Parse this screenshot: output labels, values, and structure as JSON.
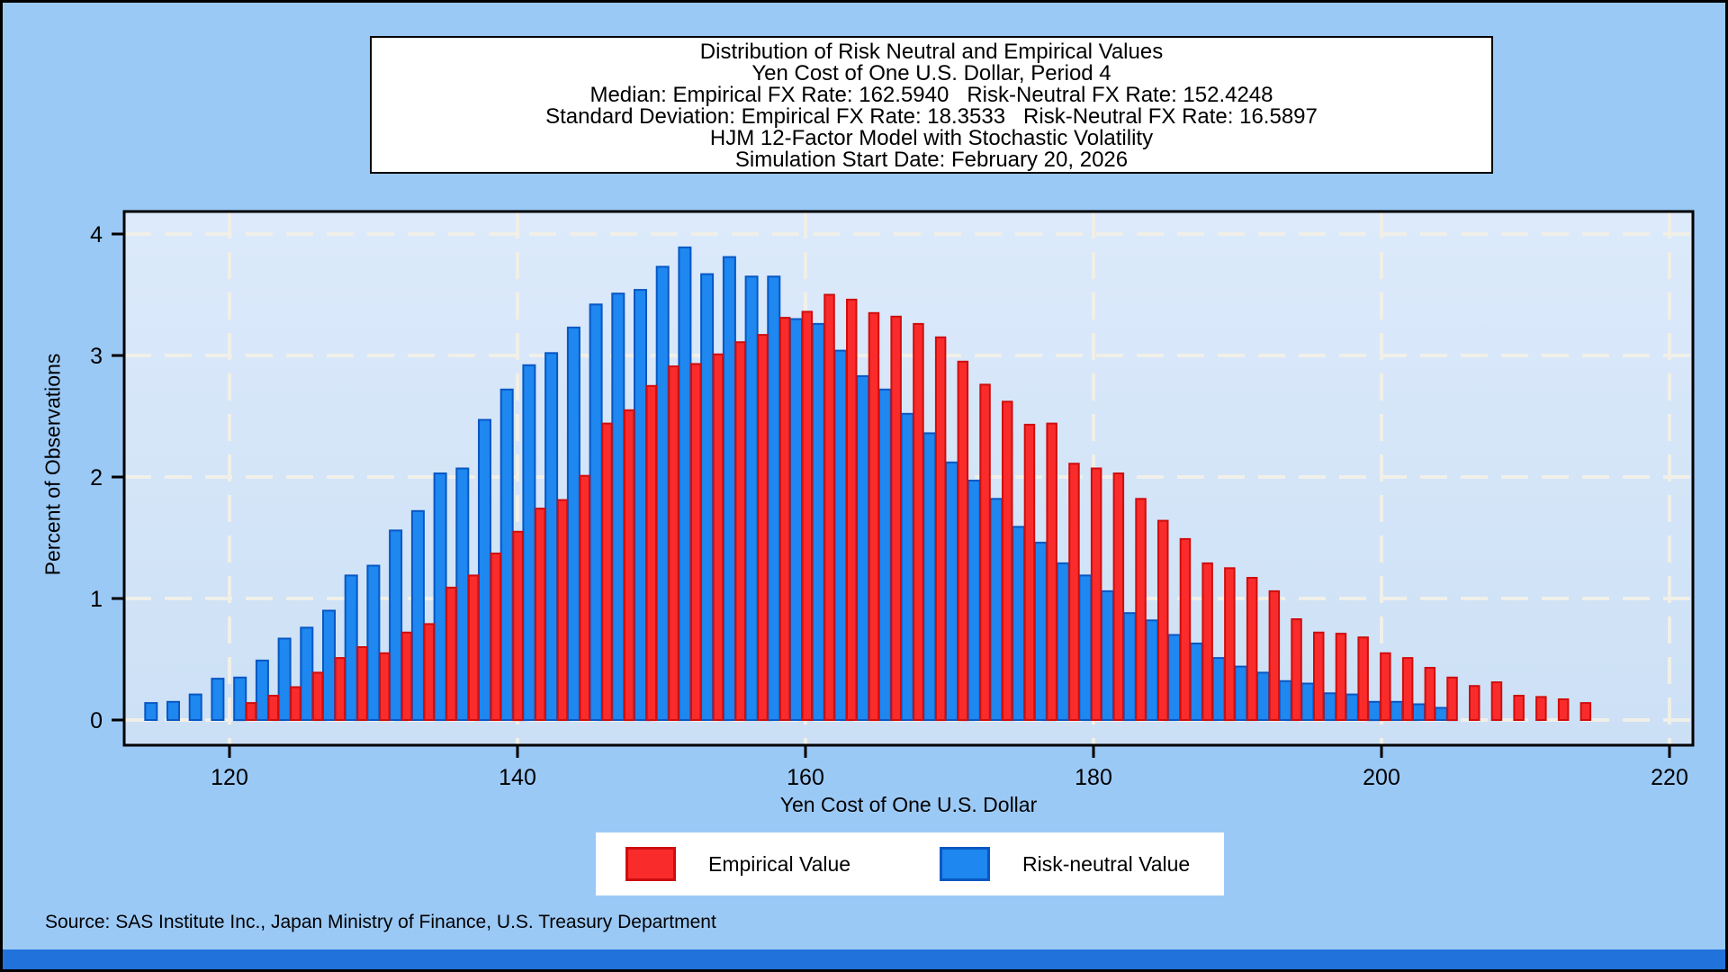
{
  "title_box": {
    "lines": [
      "Distribution of Risk Neutral and Empirical Values",
      "Yen Cost of One U.S. Dollar, Period 4",
      "Median: Empirical FX Rate: 162.5940   Risk-Neutral FX Rate: 152.4248",
      "Standard Deviation: Empirical FX Rate: 18.3533   Risk-Neutral FX Rate: 16.5897",
      "HJM 12-Factor Model with Stochastic Volatility",
      "Simulation Start Date: February 20, 2026"
    ]
  },
  "axes": {
    "x": {
      "label": "Yen Cost of One U.S. Dollar",
      "ticks": [
        120,
        140,
        160,
        180,
        200,
        220
      ]
    },
    "y": {
      "label": "Percent of Observations",
      "ticks": [
        0,
        1,
        2,
        3,
        4
      ]
    }
  },
  "legend": {
    "items": [
      {
        "label": "Empirical Value",
        "color": "#FA2B2B",
        "border": "#CE0E0E"
      },
      {
        "label": "Risk-neutral Value",
        "color": "#1E87F0",
        "border": "#0857C3"
      }
    ]
  },
  "source_note": "Source: SAS Institute Inc., Japan Ministry of Finance, U.S. Treasury Department",
  "colors": {
    "page_bg": "#9BC9F6",
    "plot_bg_top": "#DCEAFB",
    "plot_bg_bottom": "#CCE0F5",
    "grid": "#F0EFE8",
    "frame": "#000000",
    "text": "#000000",
    "box_bg": "#FFFFFF",
    "bottom_strip": "#2173DB"
  },
  "chart_data": {
    "type": "bar",
    "title": "Distribution of Risk Neutral and Empirical Values, Yen Cost of One U.S. Dollar, Period 4",
    "xlabel": "Yen Cost of One U.S. Dollar",
    "ylabel": "Percent of Observations",
    "xlim": [
      112.7,
      221.6
    ],
    "ylim": [
      0,
      4.19
    ],
    "grid": true,
    "legend_position": "bottom",
    "stats": {
      "median_empirical_fx_rate": 162.594,
      "median_risk_neutral_fx_rate": 152.4248,
      "std_empirical_fx_rate": 18.3533,
      "std_risk_neutral_fx_rate": 16.5897
    },
    "series": [
      {
        "name": "Risk-neutral Value",
        "color": "#1E87F0",
        "border": "#0857C3",
        "x_start": 114.55,
        "x_step": 1.5446,
        "values": [
          0.14,
          0.15,
          0.21,
          0.34,
          0.35,
          0.49,
          0.67,
          0.76,
          0.9,
          1.19,
          1.27,
          1.56,
          1.72,
          2.03,
          2.07,
          2.47,
          2.72,
          2.92,
          3.02,
          3.23,
          3.42,
          3.51,
          3.54,
          3.73,
          3.89,
          3.67,
          3.81,
          3.65,
          3.65,
          3.3,
          3.26,
          3.04,
          2.83,
          2.72,
          2.52,
          2.36,
          2.12,
          1.97,
          1.82,
          1.59,
          1.46,
          1.29,
          1.19,
          1.06,
          0.88,
          0.82,
          0.7,
          0.63,
          0.51,
          0.44,
          0.39,
          0.32,
          0.3,
          0.22,
          0.21,
          0.15,
          0.15,
          0.13,
          0.1
        ]
      },
      {
        "name": "Empirical Value",
        "color": "#FA2B2B",
        "border": "#CE0E0E",
        "x_start": 121.5,
        "x_step": 1.5446,
        "values": [
          0.14,
          0.2,
          0.27,
          0.39,
          0.51,
          0.6,
          0.55,
          0.72,
          0.79,
          1.09,
          1.19,
          1.37,
          1.55,
          1.74,
          1.81,
          2.01,
          2.44,
          2.55,
          2.75,
          2.91,
          2.93,
          3.01,
          3.11,
          3.17,
          3.31,
          3.36,
          3.5,
          3.46,
          3.35,
          3.32,
          3.26,
          3.15,
          2.95,
          2.76,
          2.62,
          2.43,
          2.44,
          2.11,
          2.07,
          2.03,
          1.82,
          1.64,
          1.49,
          1.29,
          1.25,
          1.17,
          1.06,
          0.83,
          0.72,
          0.71,
          0.68,
          0.55,
          0.51,
          0.43,
          0.35,
          0.28,
          0.31,
          0.2,
          0.19,
          0.17,
          0.14
        ]
      }
    ]
  }
}
